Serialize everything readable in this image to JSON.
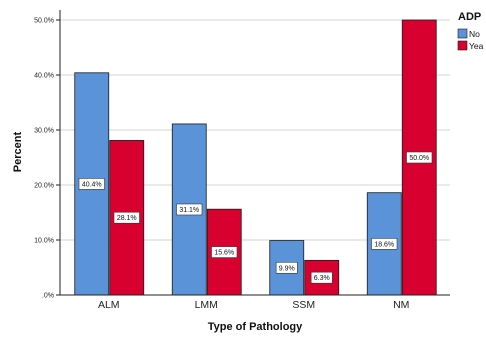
{
  "chart_data": {
    "type": "bar",
    "categories": [
      "ALM",
      "LMM",
      "SSM",
      "NM"
    ],
    "series": [
      {
        "name": "No",
        "values": [
          40.4,
          31.1,
          9.9,
          18.6
        ],
        "labels": [
          "40.4%",
          "31.1%",
          "9.9%",
          "18.6%"
        ],
        "color": "#5b93d9"
      },
      {
        "name": "Yea",
        "values": [
          28.1,
          15.6,
          6.3,
          50.0
        ],
        "labels": [
          "28.1%",
          "15.6%",
          "6.3%",
          "50.0%"
        ],
        "color": "#d8002e"
      }
    ],
    "xlabel": "Type of Pathology",
    "ylabel": "Percent",
    "ylim": [
      0,
      50
    ],
    "yticks": [
      ".0%",
      "10.0%",
      "20.0%",
      "30.0%",
      "40.0%",
      "50.0%"
    ],
    "grid": true,
    "legend": {
      "title": "ADP",
      "position": "top-right"
    }
  }
}
